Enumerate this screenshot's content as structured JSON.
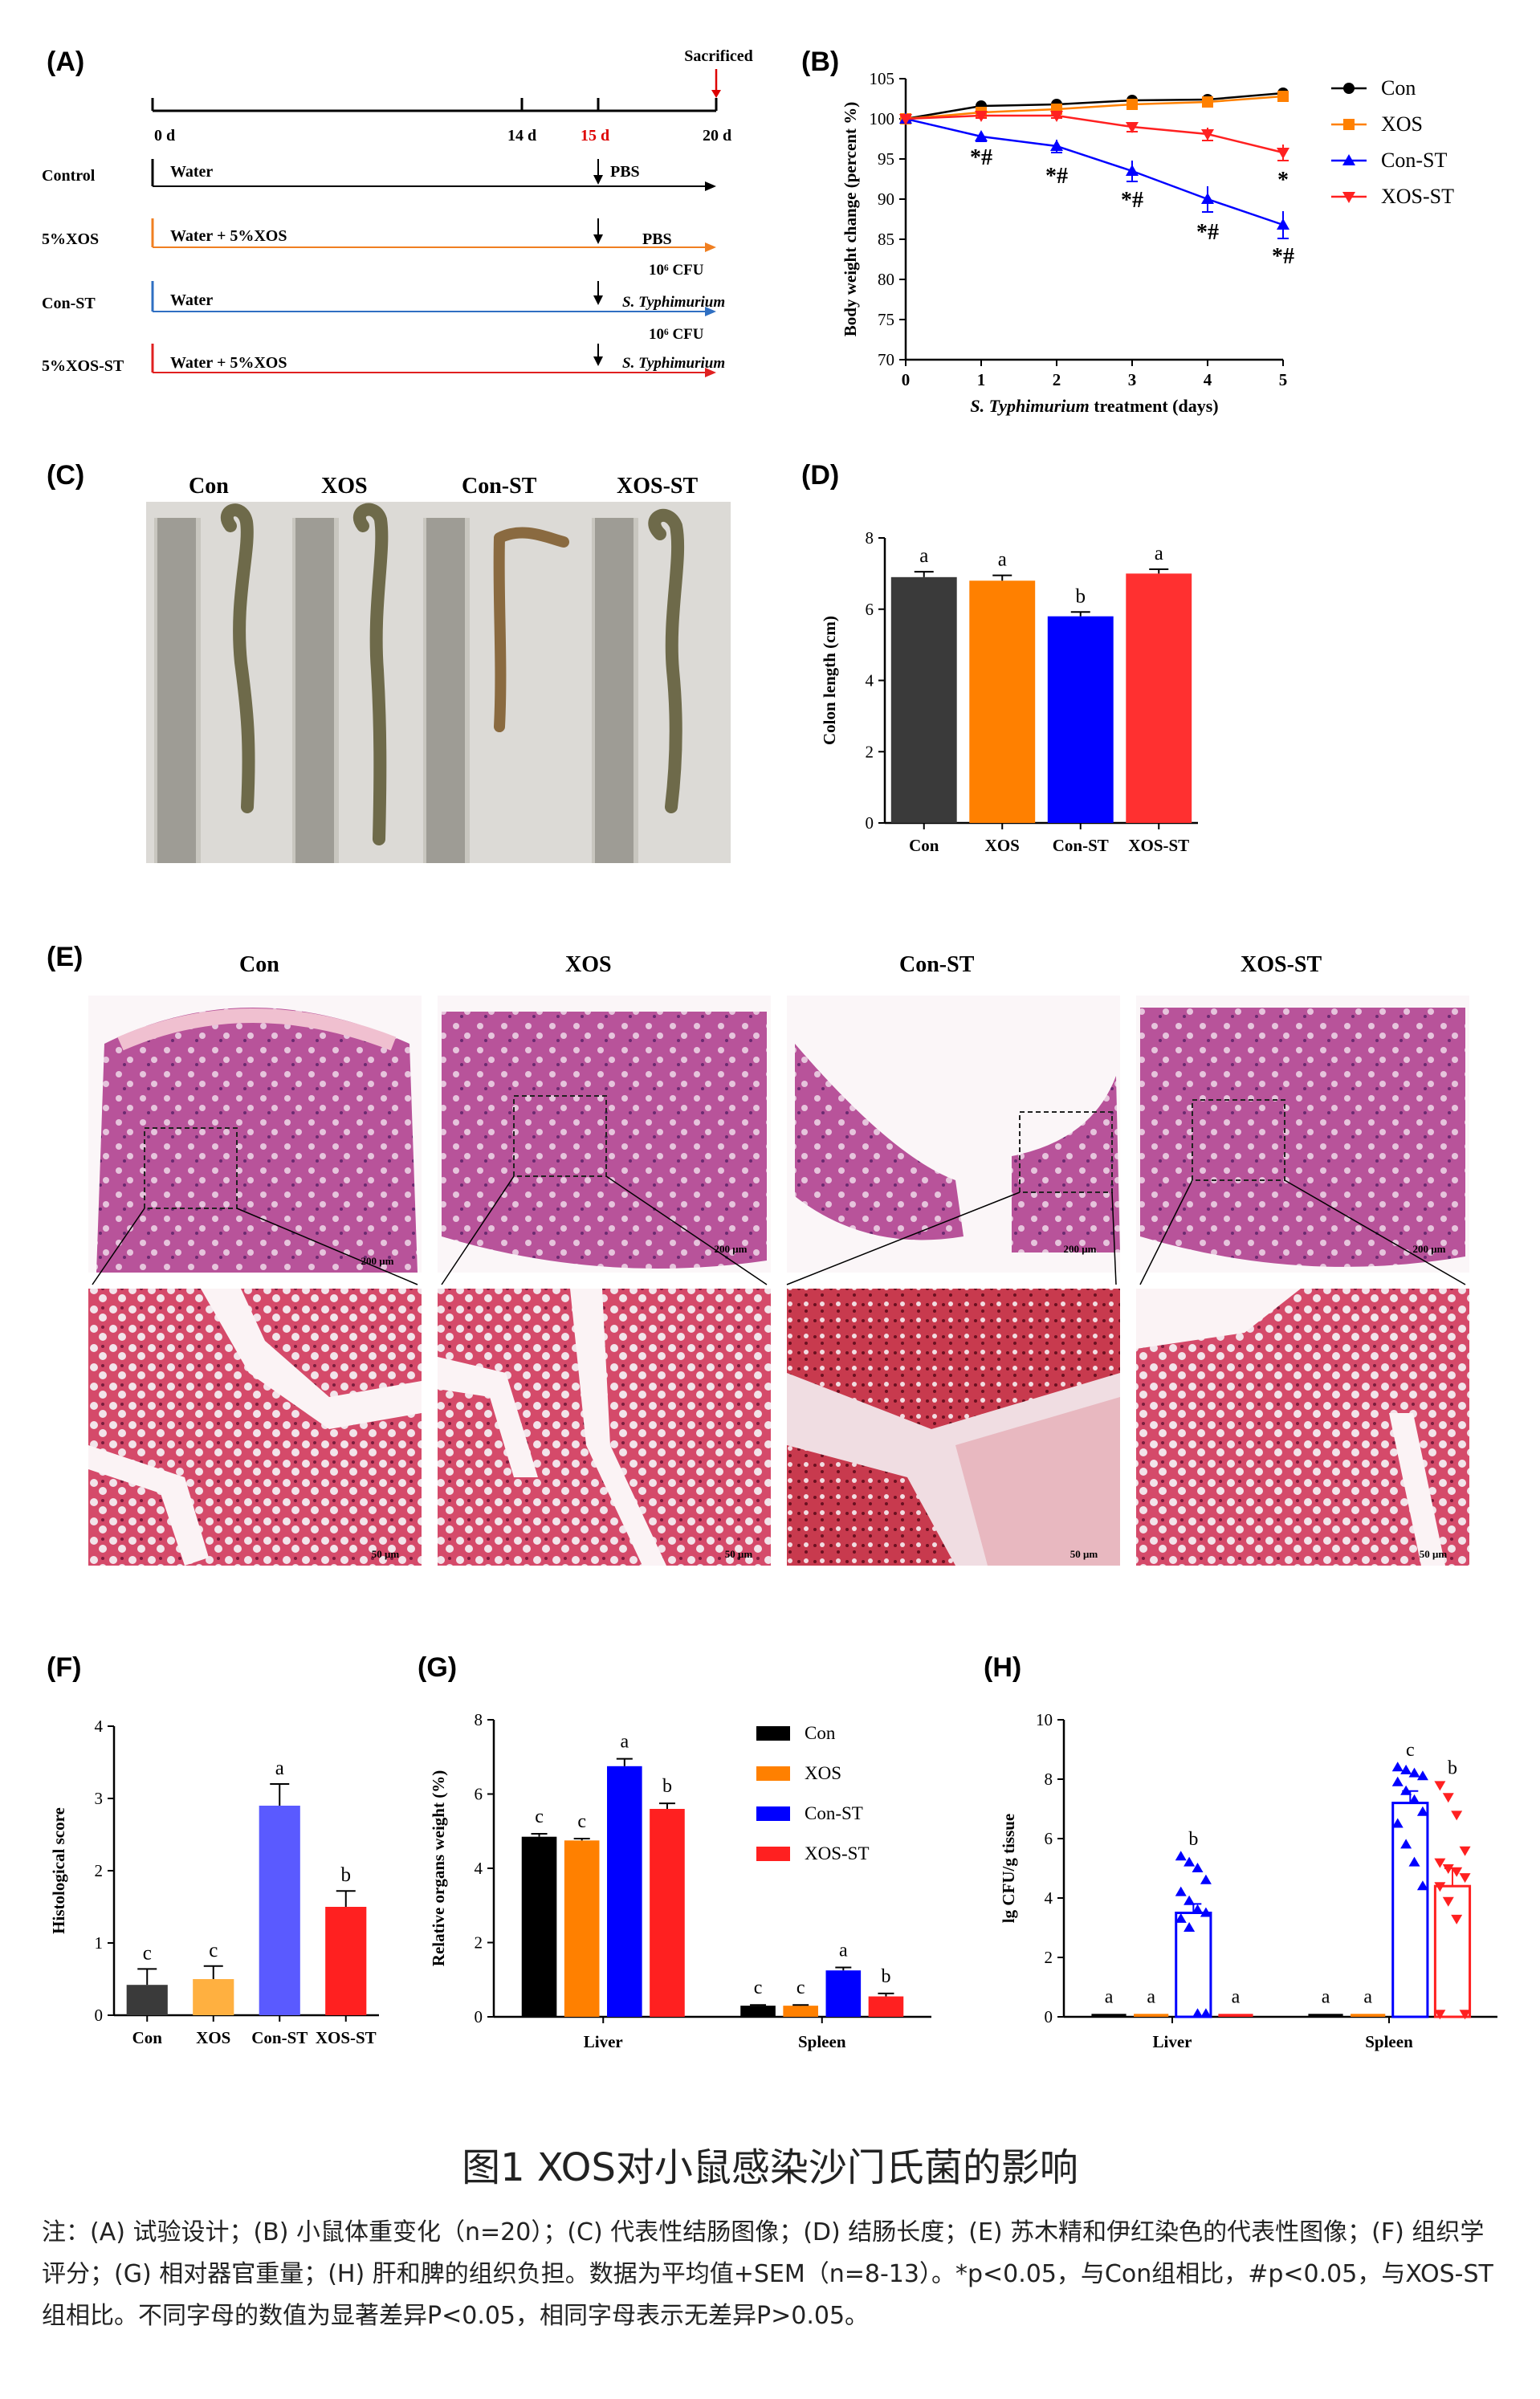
{
  "panels": {
    "A": {
      "label": "(A)",
      "sacrificed": "Sacrificed",
      "ticks": [
        "0 d",
        "14 d",
        "15 d",
        "20 d"
      ],
      "rows": [
        {
          "name": "Control",
          "treatment": "Water",
          "end": "PBS",
          "end2": "",
          "color": "#000000"
        },
        {
          "name": "5%XOS",
          "treatment": "Water + 5%XOS",
          "end": "PBS",
          "end2": "",
          "color": "#f07f21"
        },
        {
          "name": "Con-ST",
          "treatment": "Water",
          "end": "10⁶ CFU",
          "end2": "S. Typhimurium",
          "color": "#2f6fc2"
        },
        {
          "name": "5%XOS-ST",
          "treatment": "Water + 5%XOS",
          "end": "10⁶ CFU",
          "end2": "S. Typhimurium",
          "color": "#e02020"
        }
      ]
    },
    "B": {
      "label": "(B)"
    },
    "C": {
      "label": "(C)",
      "groups": [
        "Con",
        "XOS",
        "Con-ST",
        "XOS-ST"
      ]
    },
    "D": {
      "label": "(D)"
    },
    "E": {
      "label": "(E)",
      "groups": [
        "Con",
        "XOS",
        "Con-ST",
        "XOS-ST"
      ],
      "scale_top": "200 μm",
      "scale_bottom": "50 μm"
    },
    "F": {
      "label": "(F)"
    },
    "G": {
      "label": "(G)"
    },
    "H": {
      "label": "(H)"
    }
  },
  "colors": {
    "Con": "#000000",
    "XOS": "#ff8000",
    "Con-ST": "#0000ff",
    "XOS-ST": "#ff2020"
  },
  "chart_data": [
    {
      "panel": "B",
      "type": "line",
      "title": "",
      "xlabel": "S. Typhimurium treatment (days)",
      "ylabel": "Body weight change (percent %)",
      "x": [
        0,
        1,
        2,
        3,
        4,
        5
      ],
      "xlim": [
        0,
        5
      ],
      "ylim": [
        70,
        105
      ],
      "yticks": [
        70,
        75,
        80,
        85,
        90,
        95,
        100,
        105
      ],
      "legend": "right",
      "series": [
        {
          "name": "Con",
          "values": [
            100,
            101.6,
            101.8,
            102.3,
            102.4,
            103.2
          ],
          "err": [
            0,
            0.3,
            0.3,
            0.3,
            0.3,
            0.3
          ],
          "marker": "circle",
          "color": "#000000"
        },
        {
          "name": "XOS",
          "values": [
            100,
            100.8,
            101.2,
            101.8,
            102.1,
            102.8
          ],
          "err": [
            0,
            0.3,
            0.3,
            0.3,
            0.3,
            0.3
          ],
          "marker": "square",
          "color": "#ff8000"
        },
        {
          "name": "Con-ST",
          "values": [
            100,
            97.8,
            96.6,
            93.5,
            90.0,
            86.8
          ],
          "err": [
            0,
            0.6,
            0.8,
            1.3,
            1.6,
            1.7
          ],
          "marker": "triangle-up",
          "color": "#0000ff"
        },
        {
          "name": "XOS-ST",
          "values": [
            100,
            100.4,
            100.4,
            99.0,
            98.1,
            95.8
          ],
          "err": [
            0,
            0.3,
            0.3,
            0.6,
            0.8,
            1.0
          ],
          "marker": "triangle-down",
          "color": "#ff2020"
        }
      ],
      "annotations": [
        {
          "x": 1,
          "y": 94.3,
          "text": "*#"
        },
        {
          "x": 2,
          "y": 92.0,
          "text": "*#"
        },
        {
          "x": 3,
          "y": 89.0,
          "text": "*#"
        },
        {
          "x": 4,
          "y": 85.0,
          "text": "*#"
        },
        {
          "x": 5,
          "y": 91.5,
          "text": "*"
        },
        {
          "x": 5,
          "y": 82.0,
          "text": "*#"
        }
      ]
    },
    {
      "panel": "D",
      "type": "bar",
      "title": "",
      "categories": [
        "Con",
        "XOS",
        "Con-ST",
        "XOS-ST"
      ],
      "values": [
        6.9,
        6.8,
        5.8,
        7.0
      ],
      "err": [
        0.15,
        0.15,
        0.12,
        0.12
      ],
      "letters": [
        "a",
        "a",
        "b",
        "a"
      ],
      "colors": [
        "#3a3a3a",
        "#ff8000",
        "#0000ff",
        "#ff3030"
      ],
      "ylabel": "Colon length (cm)",
      "xlabel": "",
      "ylim": [
        0,
        8
      ],
      "yticks": [
        0,
        2,
        4,
        6,
        8
      ]
    },
    {
      "panel": "F",
      "type": "bar",
      "title": "",
      "categories": [
        "Con",
        "XOS",
        "Con-ST",
        "XOS-ST"
      ],
      "values": [
        0.42,
        0.5,
        2.9,
        1.5
      ],
      "err": [
        0.22,
        0.18,
        0.3,
        0.22
      ],
      "letters": [
        "c",
        "c",
        "a",
        "b"
      ],
      "colors": [
        "#3a3a3a",
        "#ffb040",
        "#5a5aff",
        "#ff2020"
      ],
      "ylabel": "Histological score",
      "xlabel": "",
      "ylim": [
        0,
        4
      ],
      "yticks": [
        0,
        1,
        2,
        3,
        4
      ]
    },
    {
      "panel": "G",
      "type": "bar",
      "title": "",
      "categories": [
        "Liver",
        "Spleen"
      ],
      "ylabel": "Relative organs weight (%)",
      "xlabel": "",
      "ylim": [
        0,
        8
      ],
      "yticks": [
        0,
        2,
        4,
        6,
        8
      ],
      "legend": "top-right",
      "series": [
        {
          "name": "Con",
          "values": [
            4.85,
            0.3
          ],
          "err": [
            0.08,
            0.02
          ],
          "letters": [
            "c",
            "c"
          ],
          "color": "#000000"
        },
        {
          "name": "XOS",
          "values": [
            4.75,
            0.3
          ],
          "err": [
            0.05,
            0.02
          ],
          "letters": [
            "c",
            "c"
          ],
          "color": "#ff8000"
        },
        {
          "name": "Con-ST",
          "values": [
            6.75,
            1.25
          ],
          "err": [
            0.2,
            0.08
          ],
          "letters": [
            "a",
            "a"
          ],
          "color": "#0000ff"
        },
        {
          "name": "XOS-ST",
          "values": [
            5.6,
            0.55
          ],
          "err": [
            0.15,
            0.08
          ],
          "letters": [
            "b",
            "b"
          ],
          "color": "#ff2020"
        }
      ]
    },
    {
      "panel": "H",
      "type": "bar",
      "title": "",
      "categories": [
        "Liver",
        "Spleen"
      ],
      "ylabel": "lg CFU/g tissue",
      "xlabel": "",
      "ylim": [
        0,
        10
      ],
      "yticks": [
        0,
        2,
        4,
        6,
        8,
        10
      ],
      "series": [
        {
          "name": "Con",
          "values": [
            0.1,
            0.1
          ],
          "err": [
            0,
            0
          ],
          "letters": [
            "a",
            "a"
          ],
          "color": "#000000",
          "points": [
            [],
            []
          ]
        },
        {
          "name": "XOS",
          "values": [
            0.1,
            0.1
          ],
          "err": [
            0,
            0
          ],
          "letters": [
            "a",
            "a"
          ],
          "color": "#ff8000",
          "points": [
            [],
            []
          ]
        },
        {
          "name": "Con-ST",
          "values": [
            3.5,
            7.2
          ],
          "err": [
            0.3,
            0.4
          ],
          "letters": [
            "b",
            "c"
          ],
          "color": "#0000ff",
          "points": [
            [
              5.4,
              5.2,
              5.0,
              4.6,
              4.2,
              3.9,
              3.6,
              3.5,
              3.3,
              3.0,
              0.1,
              0.1
            ],
            [
              8.4,
              8.3,
              8.2,
              8.1,
              7.9,
              7.6,
              7.3,
              6.9,
              6.5,
              5.8,
              5.2,
              4.4
            ]
          ]
        },
        {
          "name": "XOS-ST",
          "values": [
            0.1,
            4.4
          ],
          "err": [
            0,
            0.6
          ],
          "letters": [
            "a",
            "b"
          ],
          "color": "#ff2020",
          "points": [
            [],
            [
              7.8,
              7.4,
              6.8,
              5.6,
              5.2,
              5.0,
              4.9,
              4.7,
              4.4,
              3.9,
              3.3,
              0.1,
              0.1
            ]
          ]
        }
      ]
    }
  ],
  "caption": {
    "title": "图1 XOS对小鼠感染沙门氏菌的影响",
    "note": "注：(A) 试验设计；(B) 小鼠体重变化（n=20）；(C) 代表性结肠图像；(D) 结肠长度；(E) 苏木精和伊红染色的代表性图像；(F) 组织学评分；(G) 相对器官重量；(H) 肝和脾的组织负担。数据为平均值+SEM（n=8-13）。*p<0.05，与Con组相比，#p<0.05，与XOS-ST组相比。不同字母的数值为显著差异P<0.05，相同字母表示无差异P>0.05。"
  }
}
